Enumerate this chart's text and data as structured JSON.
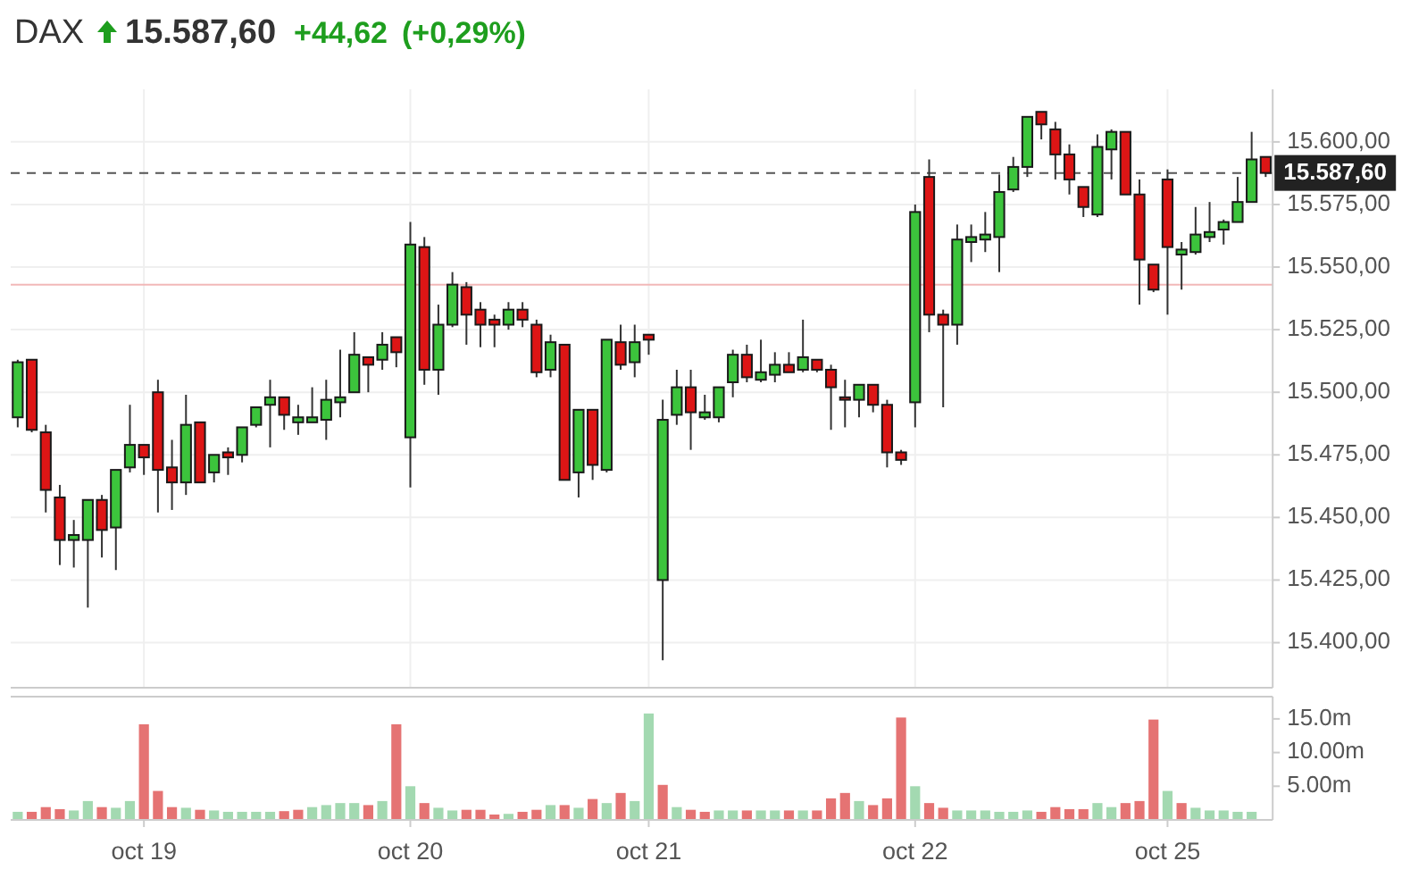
{
  "chart_data": [
    {
      "type": "candlestick",
      "title": "DAX",
      "annotations": [
        "15.587,60",
        "+44,62",
        "(+0,29%)"
      ],
      "categories": [
        null,
        null,
        null,
        null,
        null,
        null,
        null,
        null,
        null,
        null,
        null,
        null,
        null,
        null,
        null,
        null,
        null,
        null,
        null,
        null,
        null,
        null,
        null,
        null,
        null,
        null,
        null,
        null,
        null,
        null,
        null,
        null,
        null,
        null,
        null,
        null,
        null,
        null,
        null,
        null,
        null,
        null,
        null,
        null,
        null,
        null,
        null,
        null,
        null,
        null,
        null,
        null,
        null,
        null,
        null,
        null,
        null,
        null,
        null,
        null,
        null,
        null,
        null,
        null,
        null,
        null,
        null,
        null,
        null,
        null,
        null,
        null,
        null,
        null,
        null,
        null,
        null,
        null,
        null,
        null,
        null,
        null,
        null,
        null,
        null,
        null,
        null,
        null,
        null,
        null
      ],
      "ohlc": [
        [
          15490,
          15513,
          15486,
          15512
        ],
        [
          15513,
          15513,
          15484,
          15485
        ],
        [
          15484,
          15487,
          15452,
          15461
        ],
        [
          15458,
          15463,
          15431,
          15441
        ],
        [
          15441,
          15449,
          15430,
          15443
        ],
        [
          15441,
          15457,
          15414,
          15457
        ],
        [
          15457,
          15459,
          15434,
          15445
        ],
        [
          15446,
          15469,
          15429,
          15469
        ],
        [
          15470,
          15495,
          15468,
          15479
        ],
        [
          15479,
          15479,
          15467,
          15474
        ],
        [
          15500,
          15505,
          15452,
          15469
        ],
        [
          15470,
          15481,
          15453,
          15464
        ],
        [
          15464,
          15499,
          15459,
          15487
        ],
        [
          15488,
          15488,
          15464,
          15464
        ],
        [
          15468,
          15475,
          15464,
          15475
        ],
        [
          15476,
          15478,
          15467,
          15474
        ],
        [
          15475,
          15486,
          15472,
          15486
        ],
        [
          15487,
          15494,
          15486,
          15494
        ],
        [
          15495,
          15505,
          15478,
          15498
        ],
        [
          15498,
          15498,
          15485,
          15491
        ],
        [
          15488,
          15495,
          15483,
          15490
        ],
        [
          15488,
          15502,
          15488,
          15490
        ],
        [
          15489,
          15505,
          15481,
          15497
        ],
        [
          15496,
          15517,
          15490,
          15498
        ],
        [
          15500,
          15524,
          15500,
          15515
        ],
        [
          15514,
          15514,
          15500,
          15511
        ],
        [
          15513,
          15524,
          15509,
          15519
        ],
        [
          15522,
          15522,
          15510,
          15516
        ],
        [
          15482,
          15568,
          15462,
          15559
        ],
        [
          15558,
          15562,
          15503,
          15509
        ],
        [
          15509,
          15535,
          15499,
          15527
        ],
        [
          15527,
          15548,
          15526,
          15543
        ],
        [
          15542,
          15544,
          15519,
          15531
        ],
        [
          15533,
          15536,
          15518,
          15527
        ],
        [
          15529,
          15531,
          15518,
          15527
        ],
        [
          15527,
          15536,
          15525,
          15533
        ],
        [
          15533,
          15536,
          15526,
          15529
        ],
        [
          15527,
          15529,
          15506,
          15508
        ],
        [
          15509,
          15523,
          15506,
          15520
        ],
        [
          15519,
          15519,
          15465,
          15465
        ],
        [
          15468,
          15493,
          15458,
          15493
        ],
        [
          15493,
          15493,
          15465,
          15471
        ],
        [
          15469,
          15521,
          15468,
          15521
        ],
        [
          15520,
          15527,
          15509,
          15511
        ],
        [
          15512,
          15527,
          15506,
          15520
        ],
        [
          15523,
          15523,
          15515,
          15521
        ],
        [
          15425,
          15497,
          15393,
          15489
        ],
        [
          15491,
          15509,
          15487,
          15502
        ],
        [
          15502,
          15509,
          15477,
          15492
        ],
        [
          15490,
          15499,
          15489,
          15492
        ],
        [
          15490,
          15502,
          15488,
          15502
        ],
        [
          15504,
          15517,
          15498,
          15515
        ],
        [
          15515,
          15519,
          15504,
          15506
        ],
        [
          15505,
          15521,
          15504,
          15508
        ],
        [
          15507,
          15516,
          15504,
          15511
        ],
        [
          15511,
          15516,
          15508,
          15508
        ],
        [
          15509,
          15529,
          15508,
          15514
        ],
        [
          15513,
          15513,
          15508,
          15509
        ],
        [
          15509,
          15511,
          15485,
          15502
        ],
        [
          15498,
          15505,
          15486,
          15497
        ],
        [
          15497,
          15503,
          15490,
          15503
        ],
        [
          15503,
          15503,
          15492,
          15495
        ],
        [
          15495,
          15497,
          15470,
          15476
        ],
        [
          15476,
          15477,
          15471,
          15473
        ],
        [
          15496,
          15575,
          15486,
          15572
        ],
        [
          15586,
          15593,
          15524,
          15531
        ],
        [
          15531,
          15533,
          15494,
          15527
        ],
        [
          15527,
          15567,
          15519,
          15561
        ],
        [
          15560,
          15567,
          15552,
          15562
        ],
        [
          15561,
          15572,
          15556,
          15563
        ],
        [
          15562,
          15587,
          15548,
          15580
        ],
        [
          15581,
          15594,
          15580,
          15590
        ],
        [
          15590,
          15610,
          15586,
          15610
        ],
        [
          15612,
          15612,
          15601,
          15607
        ],
        [
          15605,
          15608,
          15585,
          15595
        ],
        [
          15595,
          15599,
          15579,
          15585
        ],
        [
          15582,
          15582,
          15570,
          15574
        ],
        [
          15571,
          15603,
          15570,
          15598
        ],
        [
          15597,
          15605,
          15585,
          15604
        ],
        [
          15604,
          15604,
          15579,
          15579
        ],
        [
          15579,
          15585,
          15535,
          15553
        ],
        [
          15551,
          15551,
          15540,
          15541
        ],
        [
          15585,
          15589,
          15531,
          15558
        ],
        [
          15555,
          15560,
          15541,
          15557
        ],
        [
          15556,
          15574,
          15555,
          15563
        ],
        [
          15562,
          15576,
          15560,
          15564
        ],
        [
          15565,
          15569,
          15559,
          15568
        ],
        [
          15568,
          15586,
          15568,
          15576
        ],
        [
          15576,
          15604,
          15576,
          15593
        ],
        [
          15594,
          15594,
          15586,
          15587.6
        ]
      ],
      "colors": [
        "#3cc43c",
        "#dd1515",
        "#dd1515",
        "#dd1515",
        "#3cc43c",
        "#3cc43c",
        "#dd1515",
        "#3cc43c",
        "#3cc43c",
        "#dd1515",
        "#dd1515",
        "#dd1515",
        "#3cc43c",
        "#dd1515",
        "#3cc43c",
        "#dd1515",
        "#3cc43c",
        "#3cc43c",
        "#3cc43c",
        "#dd1515",
        "#3cc43c",
        "#3cc43c",
        "#3cc43c",
        "#3cc43c",
        "#3cc43c",
        "#dd1515",
        "#3cc43c",
        "#dd1515",
        "#3cc43c",
        "#dd1515",
        "#3cc43c",
        "#3cc43c",
        "#dd1515",
        "#dd1515",
        "#dd1515",
        "#3cc43c",
        "#dd1515",
        "#dd1515",
        "#3cc43c",
        "#dd1515",
        "#3cc43c",
        "#dd1515",
        "#3cc43c",
        "#dd1515",
        "#3cc43c",
        "#dd1515",
        "#3cc43c",
        "#3cc43c",
        "#dd1515",
        "#3cc43c",
        "#3cc43c",
        "#3cc43c",
        "#dd1515",
        "#3cc43c",
        "#3cc43c",
        "#dd1515",
        "#3cc43c",
        "#dd1515",
        "#dd1515",
        "#dd1515",
        "#3cc43c",
        "#dd1515",
        "#dd1515",
        "#dd1515",
        "#3cc43c",
        "#dd1515",
        "#dd1515",
        "#3cc43c",
        "#3cc43c",
        "#3cc43c",
        "#3cc43c",
        "#3cc43c",
        "#3cc43c",
        "#dd1515",
        "#dd1515",
        "#dd1515",
        "#dd1515",
        "#3cc43c",
        "#3cc43c",
        "#dd1515",
        "#dd1515",
        "#dd1515",
        "#dd1515",
        "#3cc43c",
        "#3cc43c",
        "#3cc43c",
        "#3cc43c",
        "#3cc43c",
        "#3cc43c",
        "#dd1515"
      ],
      "ylim": [
        15382,
        15621
      ],
      "yticks": [
        {
          "value": 15400,
          "label": "15.400,00"
        },
        {
          "value": 15425,
          "label": "15.425,00"
        },
        {
          "value": 15450,
          "label": "15.450,00"
        },
        {
          "value": 15475,
          "label": "15.475,00"
        },
        {
          "value": 15500,
          "label": "15.500,00"
        },
        {
          "value": 15525,
          "label": "15.525,00"
        },
        {
          "value": 15550,
          "label": "15.550,00"
        },
        {
          "value": 15575,
          "label": "15.575,00"
        },
        {
          "value": 15600,
          "label": "15.600,00"
        }
      ],
      "grid": true,
      "tick_labels": "y",
      "ref_lines": [
        {
          "axis": "y",
          "value": 15587.6,
          "label": "15.587,60",
          "color": "#555555",
          "line_style": "dashed"
        },
        {
          "axis": "y",
          "value": 15542.98,
          "color": "#f2b8b8"
        }
      ]
    },
    {
      "type": "bar",
      "categories": [
        null,
        null,
        null,
        null,
        null,
        null,
        null,
        null,
        null,
        "oct 19",
        null,
        null,
        null,
        null,
        null,
        null,
        null,
        null,
        null,
        null,
        null,
        null,
        null,
        null,
        null,
        null,
        null,
        null,
        "oct 20",
        null,
        null,
        null,
        null,
        null,
        null,
        null,
        null,
        null,
        null,
        null,
        null,
        null,
        null,
        null,
        null,
        "oct 21",
        null,
        null,
        null,
        null,
        null,
        null,
        null,
        null,
        null,
        null,
        null,
        null,
        null,
        null,
        null,
        null,
        null,
        null,
        "oct 22",
        null,
        null,
        null,
        null,
        null,
        null,
        null,
        null,
        null,
        null,
        null,
        null,
        null,
        null,
        null,
        null,
        null,
        "oct 25",
        null,
        null,
        null,
        null,
        null,
        null,
        null
      ],
      "values": [
        1.2,
        1.2,
        1.9,
        1.6,
        1.4,
        2.8,
        1.9,
        1.8,
        2.8,
        14.2,
        4.3,
        1.9,
        1.8,
        1.5,
        1.4,
        1.2,
        1.2,
        1.2,
        1.2,
        1.3,
        1.5,
        1.9,
        2.2,
        2.5,
        2.5,
        2.2,
        2.8,
        14.2,
        5.0,
        2.5,
        1.8,
        1.4,
        1.5,
        1.5,
        0.8,
        0.9,
        1.2,
        1.5,
        2.2,
        2.2,
        1.8,
        3.1,
        2.5,
        4.0,
        2.8,
        15.8,
        5.2,
        1.9,
        1.5,
        1.2,
        1.4,
        1.4,
        1.4,
        1.4,
        1.4,
        1.4,
        1.4,
        1.4,
        3.2,
        4.0,
        2.8,
        2.2,
        3.2,
        15.2,
        5.0,
        2.5,
        1.8,
        1.4,
        1.4,
        1.4,
        1.2,
        1.2,
        1.4,
        1.2,
        1.9,
        1.6,
        1.6,
        2.5,
        1.9,
        2.5,
        2.8,
        14.9,
        4.3,
        2.5,
        1.8,
        1.4,
        1.4,
        1.2,
        1.2,
        null
      ],
      "colors": [
        "#a3d9b1",
        "#e57373",
        "#e57373",
        "#e57373",
        "#a3d9b1",
        "#a3d9b1",
        "#e57373",
        "#a3d9b1",
        "#a3d9b1",
        "#e57373",
        "#e57373",
        "#e57373",
        "#a3d9b1",
        "#e57373",
        "#a3d9b1",
        "#a3d9b1",
        "#a3d9b1",
        "#a3d9b1",
        "#a3d9b1",
        "#e57373",
        "#e57373",
        "#a3d9b1",
        "#a3d9b1",
        "#a3d9b1",
        "#a3d9b1",
        "#e57373",
        "#a3d9b1",
        "#e57373",
        "#a3d9b1",
        "#e57373",
        "#a3d9b1",
        "#a3d9b1",
        "#e57373",
        "#e57373",
        "#e57373",
        "#a3d9b1",
        "#e57373",
        "#e57373",
        "#a3d9b1",
        "#e57373",
        "#a3d9b1",
        "#e57373",
        "#a3d9b1",
        "#e57373",
        "#a3d9b1",
        "#a3d9b1",
        "#e57373",
        "#a3d9b1",
        "#e57373",
        "#e57373",
        "#a3d9b1",
        "#a3d9b1",
        "#e57373",
        "#a3d9b1",
        "#a3d9b1",
        "#e57373",
        "#a3d9b1",
        "#e57373",
        "#e57373",
        "#e57373",
        "#a3d9b1",
        "#e57373",
        "#e57373",
        "#e57373",
        "#a3d9b1",
        "#e57373",
        "#e57373",
        "#a3d9b1",
        "#a3d9b1",
        "#a3d9b1",
        "#a3d9b1",
        "#a3d9b1",
        "#a3d9b1",
        "#e57373",
        "#e57373",
        "#e57373",
        "#e57373",
        "#a3d9b1",
        "#a3d9b1",
        "#e57373",
        "#e57373",
        "#e57373",
        "#a3d9b1",
        "#e57373",
        "#a3d9b1",
        "#a3d9b1",
        "#a3d9b1",
        "#a3d9b1",
        "#a3d9b1",
        null
      ],
      "ylim": [
        0,
        18.3
      ],
      "yticks": [
        {
          "value": 5,
          "label": "5.00m"
        },
        {
          "value": 10,
          "label": "10.00m"
        },
        {
          "value": 15,
          "label": "15.0m"
        }
      ]
    }
  ]
}
